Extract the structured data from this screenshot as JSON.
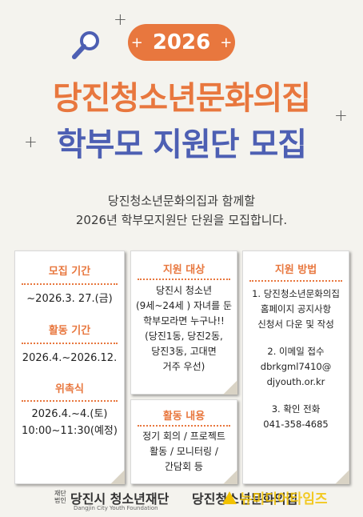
{
  "header": {
    "year": "2026",
    "title_line1": "당진청소년문화의집",
    "title_line2": "학부모 지원단 모집"
  },
  "intro": {
    "line1": "당진청소년문화의집과 함께할",
    "line2": "2026년 학부모지원단 단원을 모집합니다."
  },
  "card_left": {
    "recruit_title": "모집 기간",
    "recruit_value": "~2026.3. 27.(금)",
    "activity_title": "활동 기간",
    "activity_value": "2026.4.~2026.12.",
    "ceremony_title": "위촉식",
    "ceremony_line1": "2026.4.~4.(토)",
    "ceremony_line2": "10:00~11:30(예정)"
  },
  "card_target": {
    "title": "지원 대상",
    "lines": [
      "당진시 청소년",
      "(9세~24세 ) 자녀를 둔",
      "학부모라면 누구나!!",
      "(당진1동, 당진2동,",
      "당진3동, 고대면",
      "거주 우선)"
    ]
  },
  "card_activity": {
    "title": "활동 내용",
    "lines": [
      "정기 회의 / 프로젝트",
      "활동 / 모니터링 /",
      "간담회 등"
    ]
  },
  "card_apply": {
    "title": "지원 방법",
    "step1_lines": [
      "1. 당진청소년문화의집",
      "홈페이지 공지사항",
      "신청서 다운 및 작성"
    ],
    "step2_lines": [
      "2. 이메일 접수",
      "dbrkgml7410@",
      "djyouth.or.kr"
    ],
    "step3_lines": [
      "3. 확인 전화",
      "041-358-4685"
    ]
  },
  "footer": {
    "org_small_line1": "재단",
    "org_small_line2": "법인",
    "org1": "당진시 청소년재단",
    "org1_sub": "Dangjin City Youth Foundation",
    "org2": "당진청소년문화의집",
    "watermark": "뉴미디어타임즈"
  },
  "colors": {
    "accent_orange": "#e8773e",
    "accent_blue": "#4d5fb3",
    "background": "#f4f3ee"
  },
  "icons": [
    "magnifier-icon",
    "sparkle-icon"
  ]
}
